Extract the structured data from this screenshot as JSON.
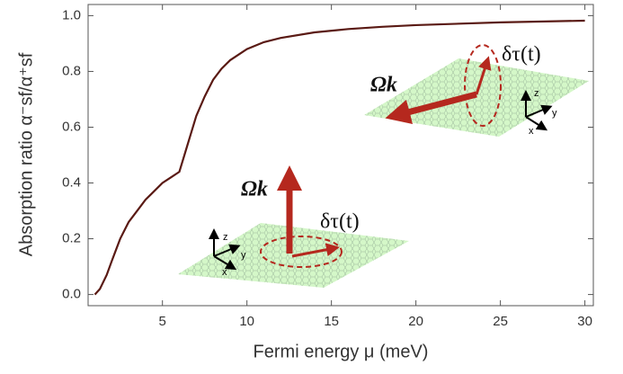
{
  "chart_data": {
    "type": "line",
    "xlabel": "Fermi energy μ (meV)",
    "ylabel": "Absorption ratio  α⁻sf/α⁺sf",
    "x": [
      1,
      1.3,
      1.7,
      2,
      2.5,
      3,
      3.5,
      4,
      4.5,
      5,
      5.5,
      6,
      6.3,
      6.7,
      7,
      7.5,
      8,
      8.5,
      9,
      10,
      11,
      12,
      14,
      16,
      18,
      20,
      25,
      30
    ],
    "series": [
      {
        "color": "#5a1a14",
        "values": [
          0,
          0.02,
          0.07,
          0.12,
          0.2,
          0.26,
          0.3,
          0.34,
          0.37,
          0.4,
          0.42,
          0.44,
          0.5,
          0.58,
          0.64,
          0.71,
          0.77,
          0.81,
          0.84,
          0.88,
          0.905,
          0.92,
          0.94,
          0.952,
          0.96,
          0.966,
          0.976,
          0.982
        ]
      }
    ],
    "xlim": [
      0.6,
      30.5
    ],
    "ylim": [
      -0.04,
      1.04
    ],
    "xticks": [
      5,
      10,
      15,
      20,
      25,
      30
    ],
    "yticks": [
      {
        "value": 0,
        "label": "0.0"
      },
      {
        "value": 0.2,
        "label": "0.2"
      },
      {
        "value": 0.4,
        "label": "0.4"
      },
      {
        "value": 0.6,
        "label": "0.6"
      },
      {
        "value": 0.8,
        "label": "0.8"
      },
      {
        "value": 1,
        "label": "1.0"
      }
    ],
    "grid": false,
    "annotations": [
      "Ωk",
      "δτ(t)",
      "Ωk",
      "δτ(t)"
    ],
    "inset_axes": [
      "x",
      "y",
      "z"
    ]
  }
}
